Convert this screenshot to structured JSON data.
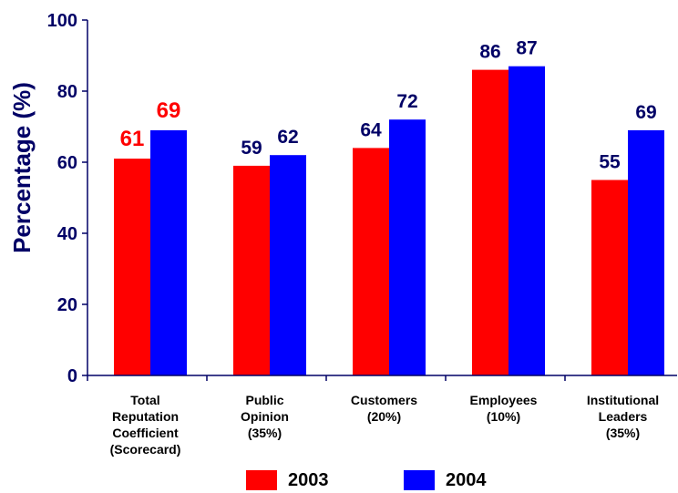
{
  "chart_data": {
    "type": "bar",
    "ylabel": "Percentage (%)",
    "ylim": [
      0,
      100
    ],
    "yticks": [
      "0",
      "20",
      "40",
      "60",
      "80",
      "100"
    ],
    "categories": [
      [
        "Total",
        "Reputation",
        "Coefficient",
        "(Scorecard)"
      ],
      [
        "Public",
        "Opinion",
        "(35%)"
      ],
      [
        "Customers",
        "(20%)"
      ],
      [
        "Employees",
        "(10%)"
      ],
      [
        "Institutional",
        "Leaders",
        "(35%)"
      ]
    ],
    "series": [
      {
        "name": "2003",
        "color": "#ff0000",
        "values": [
          61,
          59,
          64,
          86,
          55
        ]
      },
      {
        "name": "2004",
        "color": "#0000ff",
        "values": [
          69,
          62,
          72,
          87,
          69
        ]
      }
    ],
    "data_label_colors": [
      [
        "#ff0000",
        "#ff0000"
      ],
      [
        "#000066",
        "#000066"
      ],
      [
        "#000066",
        "#000066"
      ],
      [
        "#000066",
        "#000066"
      ],
      [
        "#000066",
        "#000066"
      ]
    ],
    "axis_color": "#000066",
    "legend_position": "bottom",
    "grid": false
  }
}
